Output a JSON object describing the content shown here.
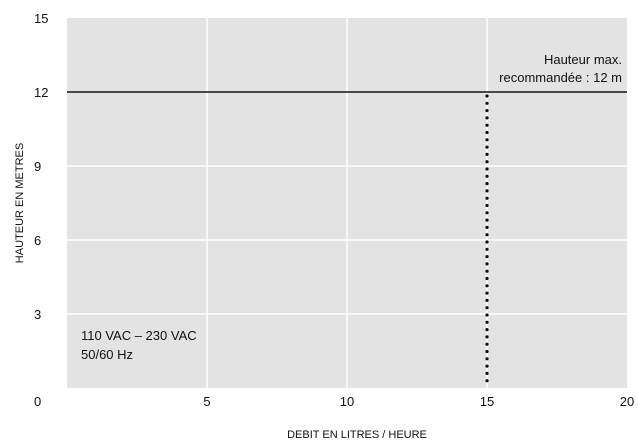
{
  "chart_data": {
    "type": "line",
    "xlabel": "DEBIT EN LITRES / HEURE",
    "ylabel": "HAUTEUR EN METRES",
    "xlim": [
      0,
      20
    ],
    "ylim": [
      0,
      15
    ],
    "x_ticks": [
      5,
      10,
      15,
      20
    ],
    "y_ticks": [
      3,
      6,
      9,
      12,
      15
    ],
    "origin_label": "0",
    "grid": true,
    "background_color": "#e3e3e3",
    "grid_color": "#ffffff",
    "reference_lines": [
      {
        "orientation": "horizontal",
        "style": "solid",
        "value": 12,
        "label_lines": [
          "Hauteur max.",
          "recommandée : 12 m"
        ]
      },
      {
        "orientation": "vertical",
        "style": "dotted",
        "x": 15,
        "y_range": [
          0,
          12
        ]
      }
    ],
    "annotation_lines": [
      "110 VAC – 230 VAC",
      "50/60 Hz"
    ]
  }
}
